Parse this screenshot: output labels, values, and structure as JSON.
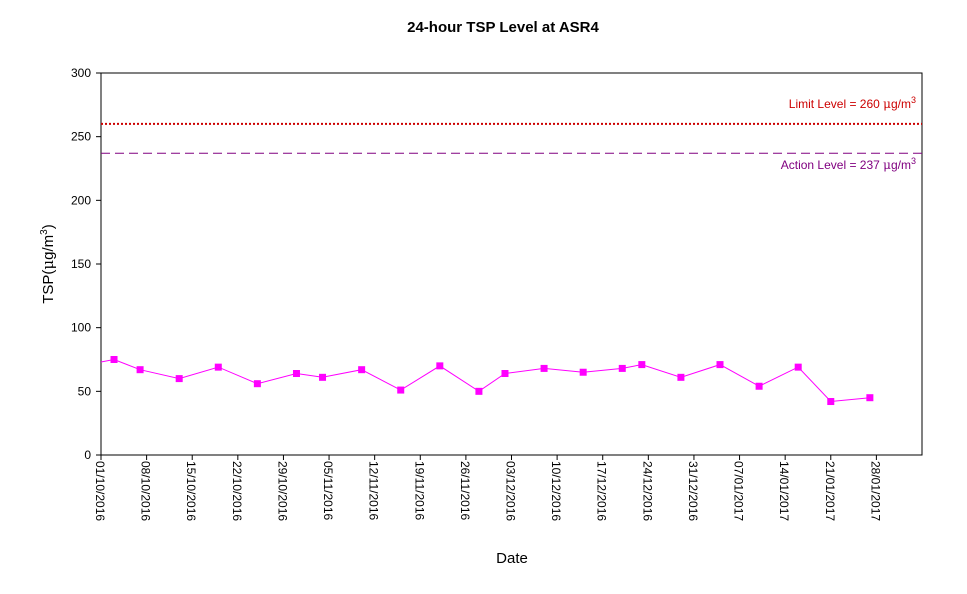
{
  "chart_data": {
    "type": "line",
    "title": "24-hour TSP Level at ASR4",
    "xlabel": "Date",
    "ylabel": {
      "prefix": "TSP(",
      "mu": "μ",
      "unit": "g/m",
      "sup": "3",
      "suffix": ")"
    },
    "ylim": [
      0,
      300
    ],
    "yticks": [
      0,
      50,
      100,
      150,
      200,
      250,
      300
    ],
    "xlim": [
      "2016-10-01",
      "2017-02-04"
    ],
    "xticks": [
      "01/10/2016",
      "08/10/2016",
      "15/10/2016",
      "22/10/2016",
      "29/10/2016",
      "05/11/2016",
      "12/11/2016",
      "19/11/2016",
      "26/11/2016",
      "03/12/2016",
      "10/12/2016",
      "17/12/2016",
      "24/12/2016",
      "31/12/2016",
      "07/01/2017",
      "14/01/2017",
      "21/01/2017",
      "28/01/2017"
    ],
    "grid": false,
    "series": [
      {
        "color": "#ff00ff",
        "points": [
          {
            "x": "2016-10-01",
            "y": 73
          },
          {
            "x": "2016-10-03",
            "y": 75
          },
          {
            "x": "2016-10-07",
            "y": 67
          },
          {
            "x": "2016-10-13",
            "y": 60
          },
          {
            "x": "2016-10-19",
            "y": 69
          },
          {
            "x": "2016-10-25",
            "y": 56
          },
          {
            "x": "2016-10-31",
            "y": 64
          },
          {
            "x": "2016-11-04",
            "y": 61
          },
          {
            "x": "2016-11-10",
            "y": 67
          },
          {
            "x": "2016-11-16",
            "y": 51
          },
          {
            "x": "2016-11-22",
            "y": 70
          },
          {
            "x": "2016-11-28",
            "y": 50
          },
          {
            "x": "2016-12-02",
            "y": 64
          },
          {
            "x": "2016-12-08",
            "y": 68
          },
          {
            "x": "2016-12-14",
            "y": 65
          },
          {
            "x": "2016-12-20",
            "y": 68
          },
          {
            "x": "2016-12-23",
            "y": 71
          },
          {
            "x": "2016-12-29",
            "y": 61
          },
          {
            "x": "2017-01-04",
            "y": 71
          },
          {
            "x": "2017-01-10",
            "y": 54
          },
          {
            "x": "2017-01-16",
            "y": 69
          },
          {
            "x": "2017-01-21",
            "y": 42
          },
          {
            "x": "2017-01-27",
            "y": 45
          }
        ]
      }
    ],
    "reference_lines": [
      {
        "value": 260,
        "label": "Limit Level = 260 ",
        "mu": "μ",
        "unit": "g/m",
        "sup": "3",
        "color": "#cc0000",
        "style": "dotted",
        "label_position": "above"
      },
      {
        "value": 237,
        "label": "Action Level = 237 ",
        "mu": "μ",
        "unit": "g/m",
        "sup": "3",
        "color": "#800080",
        "style": "dashed",
        "label_position": "below"
      }
    ]
  }
}
